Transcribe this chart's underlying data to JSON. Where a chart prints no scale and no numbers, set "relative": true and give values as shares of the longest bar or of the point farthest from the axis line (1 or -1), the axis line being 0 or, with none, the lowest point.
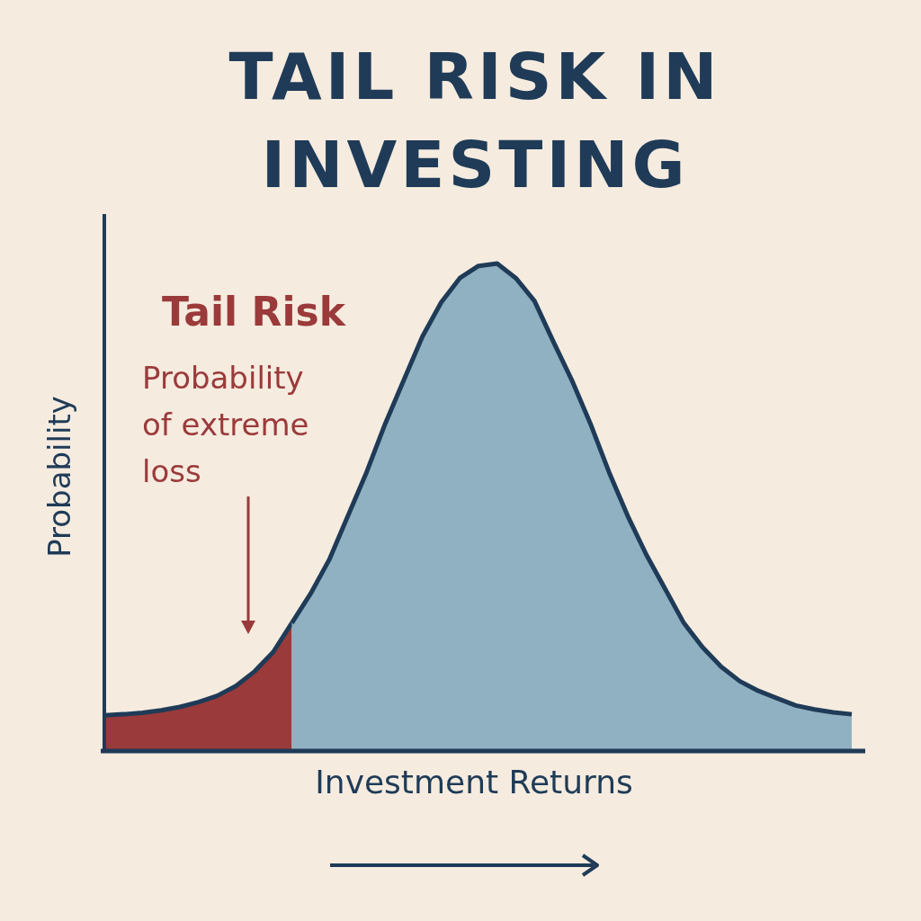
{
  "chart_data": {
    "type": "area",
    "relative": true,
    "title": "TAIL RISK IN INVESTING",
    "xlabel": "Investment Returns",
    "ylabel": "Probability",
    "annotations": [
      "Tail Risk",
      "Probability of extreme loss"
    ],
    "categories": [
      null,
      null,
      null,
      null,
      null,
      null,
      null,
      null,
      null,
      null,
      null,
      null,
      null,
      null,
      null,
      null,
      null,
      null,
      null,
      null,
      null,
      null,
      null,
      null,
      null,
      null,
      null,
      null,
      null,
      null,
      null,
      null,
      null,
      null,
      null,
      null,
      null,
      null,
      null,
      null,
      null
    ],
    "series": [
      {
        "color": "#9b3a3a",
        "values": [
          0.07,
          0.072,
          0.075,
          0.08,
          0.087,
          0.097,
          0.11,
          0.13,
          0.16,
          0.2,
          0.26,
          null,
          null,
          null,
          null,
          null,
          null,
          null,
          null,
          null,
          null,
          null,
          null,
          null,
          null,
          null,
          null,
          null,
          null,
          null,
          null,
          null,
          null,
          null,
          null,
          null,
          null,
          null,
          null,
          null,
          null
        ]
      },
      {
        "color": "#8fb1c2",
        "values": [
          null,
          null,
          null,
          null,
          null,
          null,
          null,
          null,
          null,
          null,
          0.26,
          0.32,
          0.39,
          0.48,
          0.57,
          0.67,
          0.76,
          0.85,
          0.92,
          0.97,
          0.995,
          1,
          0.97,
          0.923,
          0.84,
          0.76,
          0.67,
          0.57,
          0.48,
          0.4,
          0.33,
          0.26,
          0.21,
          0.17,
          0.14,
          0.12,
          0.105,
          0.09,
          0.082,
          0.076,
          0.072
        ]
      }
    ]
  }
}
